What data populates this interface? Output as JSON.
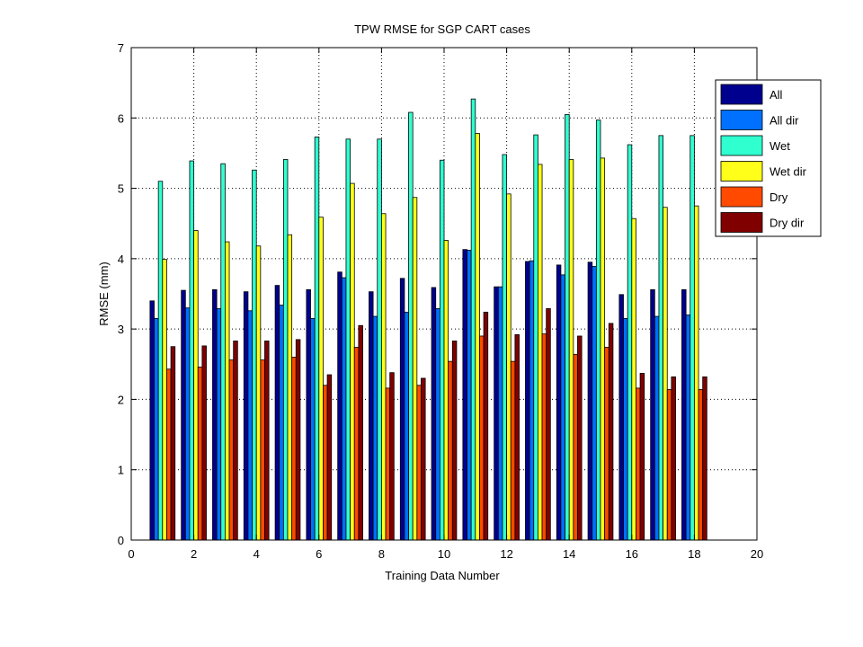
{
  "chart_data": {
    "type": "bar",
    "title": "TPW RMSE for SGP CART cases",
    "xlabel": "Training Data Number",
    "ylabel": "RMSE (mm)",
    "xlim": [
      0,
      20
    ],
    "ylim": [
      0,
      7
    ],
    "xticks": [
      0,
      2,
      4,
      6,
      8,
      10,
      12,
      14,
      16,
      18,
      20
    ],
    "yticks": [
      0,
      1,
      2,
      3,
      4,
      5,
      6,
      7
    ],
    "grid": true,
    "legend_position": "top-right",
    "x": [
      1,
      2,
      3,
      4,
      5,
      6,
      7,
      8,
      9,
      10,
      11,
      12,
      13,
      14,
      15,
      16,
      17,
      18
    ],
    "series": [
      {
        "name": "All",
        "color": "#00008f",
        "values": [
          3.4,
          3.55,
          3.56,
          3.53,
          3.62,
          3.56,
          3.81,
          3.53,
          3.72,
          3.59,
          4.13,
          3.6,
          3.96,
          3.91,
          3.95,
          3.49,
          3.56,
          3.56
        ]
      },
      {
        "name": "All dir",
        "color": "#0070ff",
        "values": [
          3.15,
          3.3,
          3.29,
          3.26,
          3.34,
          3.15,
          3.73,
          3.18,
          3.24,
          3.29,
          4.12,
          3.6,
          3.97,
          3.77,
          3.89,
          3.15,
          3.18,
          3.2
        ]
      },
      {
        "name": "Wet",
        "color": "#30ffd0",
        "values": [
          5.1,
          5.39,
          5.35,
          5.26,
          5.41,
          5.73,
          5.7,
          5.7,
          6.08,
          5.4,
          6.27,
          5.48,
          5.76,
          6.05,
          5.97,
          5.62,
          5.75,
          5.75
        ]
      },
      {
        "name": "Wet dir",
        "color": "#ffff1a",
        "values": [
          3.99,
          4.4,
          4.24,
          4.18,
          4.34,
          4.59,
          5.07,
          4.64,
          4.87,
          4.26,
          5.78,
          4.92,
          5.34,
          5.41,
          5.43,
          4.57,
          4.73,
          4.75
        ]
      },
      {
        "name": "Dry",
        "color": "#ff4a00",
        "values": [
          2.43,
          2.46,
          2.56,
          2.56,
          2.6,
          2.2,
          2.74,
          2.16,
          2.2,
          2.54,
          2.9,
          2.54,
          2.93,
          2.64,
          2.74,
          2.16,
          2.14,
          2.14
        ]
      },
      {
        "name": "Dry dir",
        "color": "#800000",
        "values": [
          2.75,
          2.76,
          2.83,
          2.83,
          2.85,
          2.35,
          3.05,
          2.38,
          2.3,
          2.83,
          3.24,
          2.92,
          3.29,
          2.9,
          3.08,
          2.37,
          2.32,
          2.32
        ]
      }
    ]
  }
}
